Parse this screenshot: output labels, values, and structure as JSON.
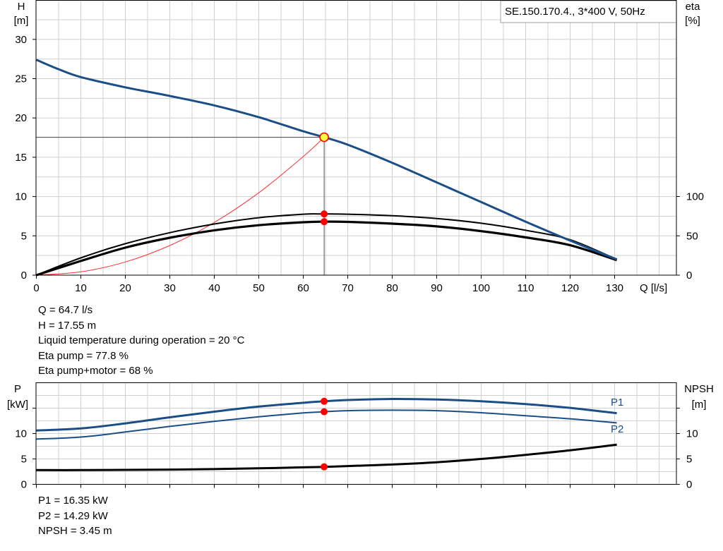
{
  "colors": {
    "pump_curve": "#1b4e86",
    "efficiency": "#000000",
    "system_curve": "#ff3030",
    "duty_point": "#ff0000",
    "duty_marker_fill": "#ffff40",
    "grid": "#d0d0d0"
  },
  "info_top": [
    "Q = 64.7 l/s",
    "H = 17.55 m",
    "Liquid temperature during operation = 20 °C",
    "Eta pump = 77.8 %",
    "Eta pump+motor = 68 %"
  ],
  "info_bottom": [
    "P1 = 16.35 kW",
    "P2 = 14.29 kW",
    "NPSH = 3.45 m"
  ],
  "chart_data": [
    {
      "type": "line",
      "title": "SE.150.170.4., 3*400 V, 50Hz",
      "xlabel": "Q [l/s]",
      "ylabel_main": "H",
      "ylabel_unit": "[m]",
      "y2label_main": "eta",
      "y2label_unit": "[%]",
      "xlim": [
        0,
        140
      ],
      "ylim": [
        0,
        35
      ],
      "y2lim": [
        0,
        100
      ],
      "grid": true,
      "x_ticks": [
        "0",
        "10",
        "20",
        "30",
        "40",
        "50",
        "60",
        "70",
        "80",
        "90",
        "100",
        "110",
        "120",
        "130"
      ],
      "y_ticks": [
        "0",
        "5",
        "10",
        "15",
        "20",
        "25",
        "30"
      ],
      "y2_ticks": [
        "0",
        "50",
        "100"
      ],
      "duty_point": {
        "x": 64.7,
        "y": 17.55
      },
      "series": [
        {
          "role": "pump-head",
          "axis": "left",
          "x": [
            0,
            5,
            10,
            20,
            30,
            40,
            50,
            60,
            64.7,
            70,
            80,
            90,
            100,
            110,
            120,
            130.5
          ],
          "y": [
            27.4,
            26.2,
            25.2,
            23.9,
            22.8,
            21.6,
            20.1,
            18.3,
            17.55,
            16.6,
            14.3,
            11.8,
            9.3,
            6.8,
            4.4,
            2.0
          ]
        },
        {
          "role": "system-curve",
          "axis": "left",
          "x": [
            0,
            10,
            20,
            30,
            40,
            50,
            60,
            64.7
          ],
          "y": [
            0,
            0.42,
            1.68,
            3.77,
            6.71,
            10.48,
            15.09,
            17.55
          ]
        },
        {
          "role": "eta-pump",
          "axis": "right",
          "x": [
            0,
            10,
            20,
            30,
            40,
            50,
            60,
            64.7,
            70,
            80,
            90,
            100,
            110,
            120,
            130.5
          ],
          "y": [
            0,
            22,
            40,
            54,
            65,
            73,
            77.5,
            77.8,
            77.5,
            75.5,
            72,
            66,
            57,
            45,
            20
          ]
        },
        {
          "role": "eta-pump-motor",
          "axis": "right",
          "x": [
            0,
            10,
            20,
            30,
            40,
            50,
            60,
            64.7,
            70,
            80,
            90,
            100,
            110,
            120,
            130.5
          ],
          "y": [
            0,
            18,
            35,
            47.5,
            57,
            63.5,
            67.3,
            68,
            67.7,
            65.5,
            62,
            56,
            48,
            38,
            19
          ]
        }
      ]
    },
    {
      "type": "line",
      "ylabel_main": "P",
      "ylabel_unit": "[kW]",
      "y2label_main": "NPSH",
      "y2label_unit": "[m]",
      "xlim": [
        0,
        140
      ],
      "ylim": [
        0,
        20
      ],
      "y2lim": [
        0,
        20
      ],
      "grid": true,
      "y_ticks": [
        "0",
        "5",
        "10"
      ],
      "y2_ticks": [
        "0",
        "5",
        "10"
      ],
      "series": [
        {
          "name": "P1",
          "axis": "left",
          "x": [
            0,
            10,
            20,
            30,
            40,
            50,
            60,
            64.7,
            70,
            80,
            90,
            100,
            110,
            120,
            130.5
          ],
          "y": [
            10.6,
            11.0,
            12.0,
            13.2,
            14.3,
            15.3,
            16.05,
            16.35,
            16.6,
            16.8,
            16.7,
            16.35,
            15.8,
            15.05,
            14.0
          ]
        },
        {
          "name": "P2",
          "axis": "left",
          "x": [
            0,
            10,
            20,
            30,
            40,
            50,
            60,
            64.7,
            70,
            80,
            90,
            100,
            110,
            120,
            130.5
          ],
          "y": [
            8.9,
            9.3,
            10.3,
            11.4,
            12.4,
            13.3,
            14.05,
            14.29,
            14.5,
            14.6,
            14.5,
            14.1,
            13.5,
            12.9,
            12.1
          ]
        },
        {
          "role": "npsh",
          "axis": "right",
          "x": [
            0,
            10,
            20,
            30,
            40,
            50,
            60,
            64.7,
            70,
            80,
            90,
            100,
            110,
            120,
            130.5
          ],
          "y": [
            2.8,
            2.8,
            2.85,
            2.9,
            3.0,
            3.15,
            3.35,
            3.45,
            3.6,
            3.9,
            4.35,
            5.0,
            5.8,
            6.7,
            7.8
          ]
        }
      ]
    }
  ]
}
